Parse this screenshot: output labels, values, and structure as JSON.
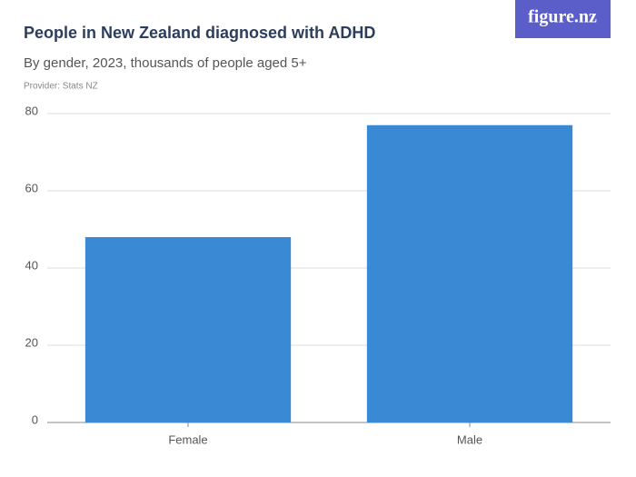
{
  "logo": "figure.nz",
  "chart_data": {
    "type": "bar",
    "title": "People in New Zealand diagnosed with ADHD",
    "subtitle": "By gender, 2023, thousands of people aged 5+",
    "provider": "Provider: Stats NZ",
    "categories": [
      "Female",
      "Male"
    ],
    "values": [
      48,
      77
    ],
    "color": "#3a89d4",
    "ylim": [
      0,
      80
    ],
    "yticks": [
      0,
      20,
      40,
      60,
      80
    ],
    "grid": true
  }
}
